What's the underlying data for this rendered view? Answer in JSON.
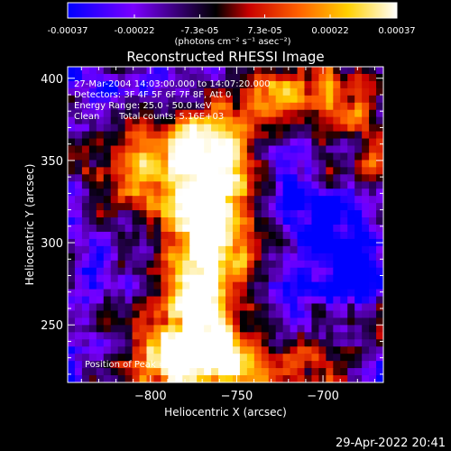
{
  "colorbar": {
    "tick_labels": [
      "-0.00037",
      "-0.00022",
      "-7.3e-05",
      "7.3e-05",
      "0.00022",
      "0.00037"
    ],
    "tick_values": [
      -0.00037,
      -0.00022,
      -7.3e-05,
      7.3e-05,
      0.00022,
      0.00037
    ],
    "range": [
      -0.00037,
      0.00037
    ],
    "units_label": "(photons cm⁻² s⁻¹ asec⁻²)",
    "colormap": [
      "#0000ff",
      "#7a00ff",
      "#000000",
      "#c80000",
      "#ff6000",
      "#ffd000",
      "#ffffff"
    ]
  },
  "chart_data": {
    "type": "heatmap",
    "title": "Reconstructed RHESSI Image",
    "xlabel": "Heliocentric X (arcsec)",
    "ylabel": "Heliocentric Y (arcsec)",
    "xlim": [
      -848,
      -665
    ],
    "ylim": [
      215,
      407
    ],
    "x_ticks": [
      -800,
      -750,
      -700
    ],
    "x_tick_labels": [
      "−800",
      "−750",
      "−700"
    ],
    "y_ticks": [
      250,
      300,
      350,
      400
    ],
    "y_tick_labels": [
      "250",
      "300",
      "350",
      "400"
    ],
    "grid": false,
    "annotations": {
      "time": "27-Mar-2004 14:03:00.000 to 14:07:20.000",
      "detectors": "Detectors: 3F 4F 5F 6F 7F 8F, Att 0",
      "energy": "Energy Range: 25.0 - 50.0 keV",
      "algorithm": "Clean",
      "counts": "Total counts: 5.16E+03",
      "peak": "Position of Peak = [−742,215]"
    },
    "peak": [
      -742,
      215
    ]
  },
  "footer": {
    "timestamp": "29-Apr-2022 20:41"
  }
}
